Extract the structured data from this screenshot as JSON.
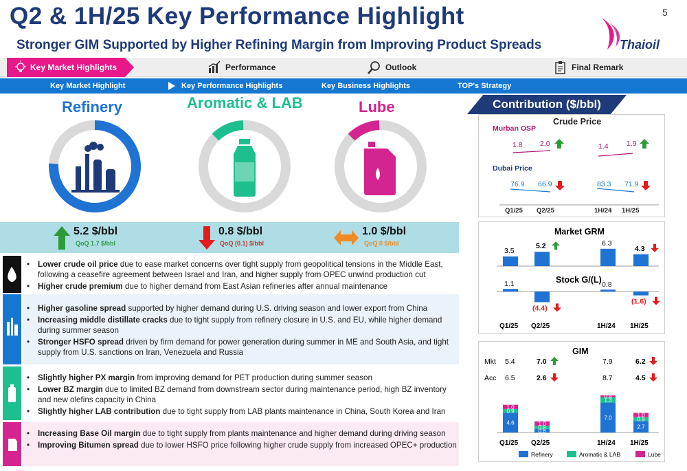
{
  "page": {
    "title": "Q2 & 1H/25  Key Performance Highlight",
    "subtitle": "Stronger GIM Supported by Higher Refining Margin from Improving Product Spreads",
    "page_number": "5",
    "logo_text": "Thaioil"
  },
  "nav": {
    "items": [
      {
        "label": "Key Market Highlights",
        "icon": "lightbulb-icon"
      },
      {
        "label": "Performance",
        "icon": "bar-chart-icon"
      },
      {
        "label": "Outlook",
        "icon": "magnifier-icon"
      },
      {
        "label": "Final Remark",
        "icon": "clipboard-icon"
      }
    ],
    "sub_items": [
      "Key Market Highlight",
      "Key Performance Highlights",
      "Key Business Highlights",
      "TOP's Strategy"
    ]
  },
  "products": [
    {
      "title": "Refinery",
      "value": "5.2 $/bbl",
      "qoq": "QoQ 1.7 $/bbl",
      "arrow": "up",
      "share": 0.76,
      "color": "#1e73d3"
    },
    {
      "title": "Aromatic & LAB",
      "value": "0.8 $/bbl",
      "qoq": "QoQ (0.1) $/bbl",
      "arrow": "down",
      "share": 0.12,
      "color": "#1dbf8e"
    },
    {
      "title": "Lube",
      "value": "1.0 $/bbl",
      "qoq": "QoQ 0 $/bbl",
      "arrow": "flat",
      "share": 0.12,
      "color": "#d4248f"
    }
  ],
  "bullets": {
    "crude": [
      {
        "bold": "Lower crude oil price",
        "text": " due to ease market concerns over tight supply from geopolitical tensions in the Middle East, following a ceasefire agreement between Israel and Iran, and higher supply from OPEC unwind production cut"
      },
      {
        "bold": "Higher crude premium",
        "text": " due to higher demand from East Asian refineries after annual maintenance"
      }
    ],
    "refinery": [
      {
        "bold": "Higher gasoline spread",
        "text": " supported by higher demand during U.S. driving season and lower export from China"
      },
      {
        "bold": "Increasing middle distillate cracks",
        "text": " due to tight supply from refinery closure in U.S. and EU, while higher demand during summer season"
      },
      {
        "bold": "Stronger HSFO spread",
        "text": " driven by firm demand for power generation during summer in ME and South Asia, and tight supply from U.S. sanctions on Iran, Venezuela and Russia"
      }
    ],
    "aromatic": [
      {
        "bold": "Slightly higher PX margin",
        "text": " from improving demand for PET production during summer season"
      },
      {
        "bold": "Lower BZ margin",
        "text": " due to limited BZ demand from downstream sector during maintenance period, high BZ inventory and new olefins capacity in China"
      },
      {
        "bold": "Slightly higher LAB contribution",
        "text": " due to tight supply from LAB plants maintenance in China, South Korea and Iran"
      }
    ],
    "lube": [
      {
        "bold": "Increasing Base Oil margin",
        "text": " due to tight supply from plants maintenance and higher demand during driving season"
      },
      {
        "bold": "Improving Bitumen spread",
        "text": " due to lower HSFO price following higher crude supply from increased OPEC+ production"
      }
    ]
  },
  "contribution": {
    "tab_label": "Contribution ($/bbl)",
    "crude_price": {
      "title": "Crude Price",
      "murban_label": "Murban OSP",
      "murban": {
        "q": [
          "1.8",
          "2.0"
        ],
        "h": [
          "1.4",
          "1.9"
        ],
        "q_dir": "up",
        "h_dir": "up"
      },
      "dubai_label": "Dubai Price",
      "dubai": {
        "q": [
          "76.9",
          "66.9"
        ],
        "h": [
          "83.3",
          "71.9"
        ],
        "q_dir": "down",
        "h_dir": "down"
      },
      "periods": [
        "Q1/25",
        "Q2/25",
        "1H/24",
        "1H/25"
      ]
    }
  },
  "chart_data": [
    {
      "type": "bar",
      "title": "Market GRM",
      "categories": [
        "Q1/25",
        "Q2/25",
        "1H/24",
        "1H/25"
      ],
      "values": [
        3.5,
        5.2,
        6.3,
        4.3
      ],
      "labels": [
        "3.5",
        "5.2",
        "6.3",
        "4.3"
      ],
      "changes": [
        "",
        "up",
        "",
        "down"
      ]
    },
    {
      "type": "bar",
      "title": "Stock G/(L)",
      "categories": [
        "Q1/25",
        "Q2/25",
        "1H/24",
        "1H/25"
      ],
      "values": [
        1.1,
        -4.4,
        0.8,
        -1.6
      ],
      "labels": [
        "1.1",
        "(4.4)",
        "0.8",
        "(1.6)"
      ],
      "changes": [
        "",
        "down",
        "",
        "down"
      ]
    },
    {
      "type": "bar",
      "title": "GIM",
      "categories": [
        "Q1/25",
        "Q2/25",
        "1H/24",
        "1H/25"
      ],
      "rows": [
        {
          "label": "Mkt",
          "values": [
            "5.4",
            "7.0",
            "7.9",
            "6.2"
          ],
          "changes": [
            "",
            "up",
            "",
            "down"
          ]
        },
        {
          "label": "Acc",
          "values": [
            "6.5",
            "2.6",
            "8.7",
            "4.5"
          ],
          "changes": [
            "",
            "down",
            "",
            "down"
          ]
        }
      ],
      "series": [
        {
          "name": "Refinery",
          "color": "#1e73d3",
          "values": [
            4.6,
            0.8,
            7.0,
            2.7
          ]
        },
        {
          "name": "Aromatic & LAB",
          "color": "#1dbf8e",
          "values": [
            0.9,
            0.8,
            1.3,
            0.9
          ]
        },
        {
          "name": "Lube",
          "color": "#d4248f",
          "values": [
            1.0,
            1.0,
            0.4,
            1.0
          ]
        }
      ]
    }
  ]
}
